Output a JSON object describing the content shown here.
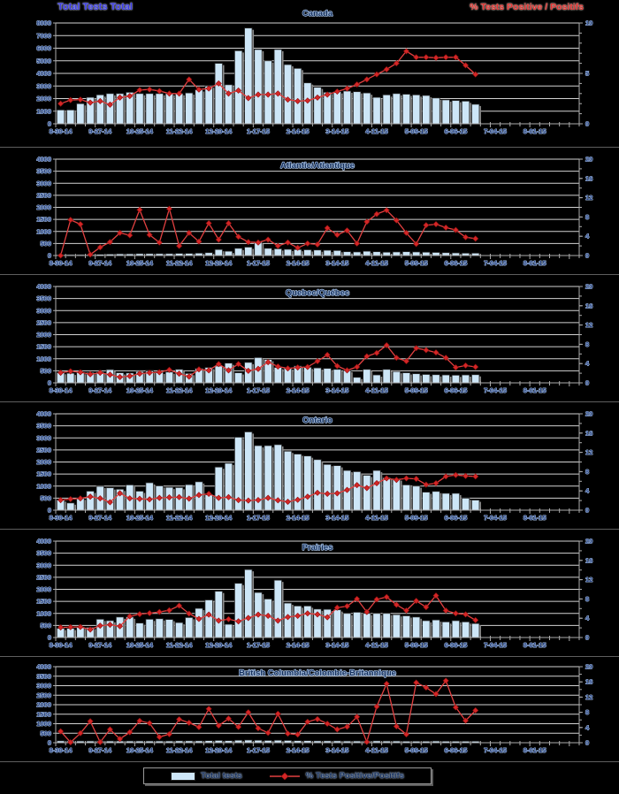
{
  "header": {
    "left_label": "Total Tests Total",
    "right_label": "% Tests Positive / Positifs"
  },
  "legend": {
    "bar_label": "Total tests",
    "line_label": "% Tests Positive/Positifs"
  },
  "colors": {
    "bar_fill": "#CDE6F7",
    "bar_border": "#2a2a2a",
    "bar_shadow": "#8C8C8C",
    "line": "#E14040",
    "marker": "#D42626",
    "marker_edge": "#8B1010",
    "grid": "#D2D2D2",
    "axis": "#ABABAB",
    "text": "#27407E",
    "halo": "#A8C2E4",
    "title_text": "#16305C"
  },
  "x_axis": {
    "tick_labels": [
      "8-30-14",
      "9-27-14",
      "10-25-14",
      "11-22-14",
      "12-20-14",
      "1-17-15",
      "2-14-15",
      "3-14-15",
      "4-11-15",
      "5-09-15",
      "6-06-15",
      "7-04-15",
      "8-01-15"
    ],
    "total_weeks": 53,
    "label_interval_weeks": 4
  },
  "chart_data": [
    {
      "type": "bar+line",
      "title": "Canada",
      "left_axis": {
        "max": 8000,
        "step": 1000
      },
      "right_axis": {
        "max": 10,
        "labels": [
          0,
          5,
          10
        ],
        "minor_step": 1
      },
      "series": [
        {
          "name": "Total tests",
          "values": [
            1100,
            1100,
            1600,
            2100,
            2300,
            2400,
            2400,
            2500,
            2400,
            2400,
            2400,
            2400,
            2400,
            2450,
            2700,
            3000,
            4800,
            3100,
            5800,
            7600,
            5900,
            5000,
            5900,
            4700,
            4400,
            3250,
            2900,
            2500,
            2550,
            2600,
            2550,
            2450,
            2100,
            2300,
            2400,
            2350,
            2300,
            2250,
            2050,
            1900,
            1850,
            1800,
            1550
          ]
        },
        {
          "name": "% Tests Positive/Positifs",
          "values": [
            2.0,
            2.35,
            2.4,
            2.1,
            2.25,
            1.9,
            2.6,
            2.75,
            3.35,
            3.4,
            3.25,
            3.0,
            3.0,
            4.4,
            3.4,
            3.5,
            4.0,
            3.0,
            3.3,
            2.55,
            2.9,
            2.9,
            3.0,
            2.4,
            2.25,
            2.3,
            2.6,
            2.9,
            3.2,
            3.5,
            3.9,
            4.4,
            4.9,
            5.4,
            6.0,
            7.2,
            6.6,
            6.6,
            6.55,
            6.6,
            6.6,
            5.8,
            4.9
          ]
        }
      ]
    },
    {
      "type": "bar+line",
      "title": "Atlantic/Atlantique",
      "left_axis": {
        "max": 4000,
        "step": 500
      },
      "right_axis": {
        "max": 20,
        "labels": [
          0,
          4,
          8,
          12,
          16,
          20
        ],
        "minor_step": 2
      },
      "series": [
        {
          "name": "Total tests",
          "values": [
            30,
            40,
            40,
            40,
            50,
            60,
            70,
            70,
            80,
            80,
            80,
            80,
            90,
            90,
            100,
            120,
            250,
            180,
            300,
            350,
            560,
            300,
            280,
            260,
            250,
            240,
            230,
            220,
            210,
            160,
            150,
            180,
            160,
            140,
            150,
            160,
            150,
            140,
            130,
            120,
            110,
            100,
            100
          ]
        },
        {
          "name": "% Tests Positive/Positifs",
          "values": [
            0.0,
            7.4,
            6.5,
            0.2,
            1.7,
            2.8,
            4.7,
            4.2,
            9.5,
            4.3,
            2.7,
            9.7,
            2.0,
            4.7,
            2.9,
            6.7,
            3.3,
            6.7,
            3.9,
            2.8,
            2.7,
            3.3,
            2.0,
            2.7,
            1.6,
            2.5,
            2.3,
            5.7,
            4.3,
            5.2,
            2.5,
            7.0,
            8.6,
            9.4,
            7.3,
            4.7,
            2.4,
            6.3,
            6.5,
            5.8,
            5.3,
            3.8,
            3.5
          ]
        }
      ]
    },
    {
      "type": "bar+line",
      "title": "Quebec/Québec",
      "left_axis": {
        "max": 4000,
        "step": 500
      },
      "right_axis": {
        "max": 20,
        "labels": [
          0,
          4,
          8,
          12,
          16,
          20
        ],
        "minor_step": 2
      },
      "series": [
        {
          "name": "Total tests",
          "values": [
            430,
            400,
            430,
            430,
            450,
            550,
            420,
            410,
            470,
            500,
            440,
            450,
            560,
            390,
            600,
            640,
            700,
            820,
            420,
            850,
            1050,
            970,
            640,
            620,
            700,
            650,
            620,
            600,
            560,
            520,
            230,
            560,
            330,
            560,
            470,
            420,
            380,
            350,
            340,
            330,
            320,
            330,
            340
          ]
        },
        {
          "name": "% Tests Positive/Positifs",
          "values": [
            2.1,
            2.4,
            2.2,
            1.8,
            2.1,
            1.7,
            1.2,
            1.4,
            1.9,
            2.1,
            2.2,
            2.7,
            1.9,
            1.3,
            2.8,
            2.6,
            3.9,
            2.6,
            3.9,
            2.5,
            2.9,
            4.3,
            3.4,
            3.0,
            3.2,
            3.3,
            4.5,
            5.8,
            3.5,
            2.6,
            3.3,
            5.5,
            6.2,
            7.8,
            5.2,
            4.5,
            7.2,
            6.8,
            6.3,
            5.2,
            3.2,
            3.6,
            3.3
          ]
        }
      ]
    },
    {
      "type": "bar+line",
      "title": "Ontario",
      "left_axis": {
        "max": 4000,
        "step": 500
      },
      "right_axis": {
        "max": 20,
        "labels": [
          0,
          4,
          8,
          12,
          16,
          20
        ],
        "minor_step": 2
      },
      "series": [
        {
          "name": "Total tests",
          "values": [
            430,
            300,
            500,
            790,
            990,
            930,
            870,
            1050,
            790,
            1140,
            1010,
            950,
            940,
            1060,
            1180,
            640,
            1790,
            1950,
            3030,
            3250,
            2680,
            2680,
            2720,
            2450,
            2330,
            2250,
            2100,
            1900,
            1850,
            1650,
            1600,
            1450,
            1650,
            1350,
            1300,
            1050,
            1000,
            750,
            780,
            700,
            700,
            500,
            420
          ]
        },
        {
          "name": "% Tests Positive/Positifs",
          "values": [
            2.1,
            2.3,
            2.45,
            2.8,
            2.45,
            1.65,
            3.5,
            2.45,
            2.35,
            2.25,
            2.55,
            2.65,
            2.7,
            2.4,
            3.15,
            3.4,
            2.55,
            2.7,
            2.1,
            2.0,
            2.1,
            2.55,
            2.05,
            1.75,
            2.15,
            2.8,
            3.6,
            3.4,
            3.5,
            4.2,
            5.2,
            4.6,
            5.6,
            6.6,
            6.3,
            6.6,
            6.5,
            5.3,
            5.6,
            7.0,
            7.3,
            7.1,
            7.0
          ]
        }
      ]
    },
    {
      "type": "bar+line",
      "title": "Prairies",
      "left_axis": {
        "max": 4000,
        "step": 500
      },
      "right_axis": {
        "max": 20,
        "labels": [
          0,
          4,
          8,
          12,
          16,
          20
        ],
        "minor_step": 2
      },
      "series": [
        {
          "name": "Total tests",
          "values": [
            380,
            380,
            430,
            420,
            760,
            700,
            850,
            850,
            600,
            760,
            780,
            750,
            620,
            830,
            1210,
            1560,
            1920,
            550,
            2250,
            2820,
            1870,
            1600,
            2380,
            1430,
            1310,
            1310,
            1180,
            1170,
            1150,
            1000,
            1050,
            1000,
            1000,
            1000,
            950,
            900,
            850,
            700,
            730,
            650,
            700,
            650,
            580
          ]
        },
        {
          "name": "% Tests Positive/Positifs",
          "values": [
            2.1,
            2.15,
            2.2,
            1.65,
            2.45,
            2.65,
            2.35,
            4.4,
            4.85,
            5.05,
            5.3,
            5.65,
            6.6,
            4.95,
            3.85,
            4.75,
            3.5,
            3.8,
            3.35,
            4.05,
            4.75,
            4.5,
            3.5,
            4.25,
            4.5,
            5.0,
            4.8,
            4.2,
            6.2,
            6.5,
            8.0,
            5.3,
            7.9,
            8.4,
            6.8,
            5.6,
            7.6,
            6.3,
            8.7,
            5.6,
            5.0,
            4.8,
            3.6
          ]
        }
      ]
    },
    {
      "type": "bar+line",
      "title": "British Columbia/Colombie-Britannique",
      "left_axis": {
        "max": 4000,
        "step": 500
      },
      "right_axis": {
        "max": 20,
        "labels": [
          0,
          4,
          8,
          12,
          16,
          20
        ],
        "minor_step": 2
      },
      "series": [
        {
          "name": "Total tests",
          "values": [
            100,
            90,
            90,
            90,
            90,
            90,
            90,
            90,
            90,
            90,
            90,
            90,
            100,
            100,
            100,
            110,
            120,
            110,
            130,
            140,
            130,
            120,
            130,
            120,
            110,
            110,
            100,
            100,
            100,
            90,
            90,
            90,
            100,
            90,
            90,
            80,
            80,
            80,
            90,
            80,
            80,
            80,
            80
          ]
        },
        {
          "name": "% Tests Positive/Positifs",
          "values": [
            3.0,
            0.1,
            2.5,
            5.65,
            0.15,
            3.5,
            1.0,
            2.75,
            5.75,
            5.15,
            1.5,
            2.25,
            6.15,
            5.25,
            4.1,
            8.9,
            4.5,
            6.35,
            4.15,
            8.0,
            3.8,
            2.6,
            7.6,
            2.4,
            2.15,
            5.5,
            6.2,
            5.0,
            3.5,
            4.2,
            6.8,
            0.2,
            9.5,
            15.5,
            4.3,
            2.2,
            15.8,
            14.5,
            12.8,
            16.3,
            9.3,
            5.8,
            8.5
          ]
        }
      ]
    }
  ]
}
